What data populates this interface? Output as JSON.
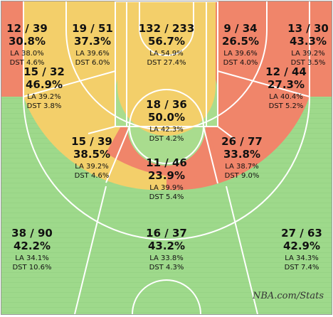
{
  "watermark": "NBA.com/Stats",
  "colors": {
    "wood": "#9dd88a",
    "red": "#f0856a",
    "yellow": "#f3cf6a",
    "green": "#a9dc8e",
    "line": "#ffffff",
    "border": "#999999"
  },
  "chart_data": {
    "type": "shot-chart",
    "title": "",
    "zones": [
      {
        "id": "left-corner-3",
        "fga": "12 / 39",
        "pct": "30.8%",
        "la": "LA 38.0%",
        "dst": "DST 4.6%",
        "fgm": 12,
        "att": 39,
        "fg_pct": 30.8,
        "league_avg": 38.0,
        "distribution": 4.6,
        "color": "red"
      },
      {
        "id": "left-baseline-mid",
        "fga": "15 / 32",
        "pct": "46.9%",
        "la": "LA 39.2%",
        "dst": "DST 3.8%",
        "fgm": 15,
        "att": 32,
        "fg_pct": 46.9,
        "league_avg": 39.2,
        "distribution": 3.8,
        "color": "yellow"
      },
      {
        "id": "left-elbow-mid",
        "fga": "19 / 51",
        "pct": "37.3%",
        "la": "LA 39.6%",
        "dst": "DST 6.0%",
        "fgm": 19,
        "att": 51,
        "fg_pct": 37.3,
        "league_avg": 39.6,
        "distribution": 6.0,
        "color": "yellow"
      },
      {
        "id": "restricted-area",
        "fga": "132 / 233",
        "pct": "56.7%",
        "la": "LA 54.9%",
        "dst": "DST 27.4%",
        "fgm": 132,
        "att": 233,
        "fg_pct": 56.7,
        "league_avg": 54.9,
        "distribution": 27.4,
        "color": "yellow"
      },
      {
        "id": "right-elbow-mid",
        "fga": "9 / 34",
        "pct": "26.5%",
        "la": "LA 39.6%",
        "dst": "DST 4.0%",
        "fgm": 9,
        "att": 34,
        "fg_pct": 26.5,
        "league_avg": 39.6,
        "distribution": 4.0,
        "color": "red"
      },
      {
        "id": "right-corner-3",
        "fga": "13 / 30",
        "pct": "43.3%",
        "la": "LA 39.2%",
        "dst": "DST 3.5%",
        "fgm": 13,
        "att": 30,
        "fg_pct": 43.3,
        "league_avg": 39.2,
        "distribution": 3.5,
        "color": "red"
      },
      {
        "id": "right-baseline-mid",
        "fga": "12 / 44",
        "pct": "27.3%",
        "la": "LA 40.4%",
        "dst": "DST 5.2%",
        "fgm": 12,
        "att": 44,
        "fg_pct": 27.3,
        "league_avg": 40.4,
        "distribution": 5.2,
        "color": "red"
      },
      {
        "id": "paint-non-ra",
        "fga": "18 / 36",
        "pct": "50.0%",
        "la": "LA 42.3%",
        "dst": "DST 4.2%",
        "fgm": 18,
        "att": 36,
        "fg_pct": 50.0,
        "league_avg": 42.3,
        "distribution": 4.2,
        "color": "green"
      },
      {
        "id": "left-wing-mid",
        "fga": "15 / 39",
        "pct": "38.5%",
        "la": "LA 39.2%",
        "dst": "DST 4.6%",
        "fgm": 15,
        "att": 39,
        "fg_pct": 38.5,
        "league_avg": 39.2,
        "distribution": 4.6,
        "color": "yellow"
      },
      {
        "id": "right-wing-mid",
        "fga": "26 / 77",
        "pct": "33.8%",
        "la": "LA 38.7%",
        "dst": "DST 9.0%",
        "fgm": 26,
        "att": 77,
        "fg_pct": 33.8,
        "league_avg": 38.7,
        "distribution": 9.0,
        "color": "red"
      },
      {
        "id": "top-key-mid",
        "fga": "11 / 46",
        "pct": "23.9%",
        "la": "LA 39.9%",
        "dst": "DST 5.4%",
        "fgm": 11,
        "att": 46,
        "fg_pct": 23.9,
        "league_avg": 39.9,
        "distribution": 5.4,
        "color": "red"
      },
      {
        "id": "left-wing-3",
        "fga": "38 / 90",
        "pct": "42.2%",
        "la": "LA 34.1%",
        "dst": "DST 10.6%",
        "fgm": 38,
        "att": 90,
        "fg_pct": 42.2,
        "league_avg": 34.1,
        "distribution": 10.6,
        "color": "green"
      },
      {
        "id": "top-key-3",
        "fga": "16 / 37",
        "pct": "43.2%",
        "la": "LA 33.8%",
        "dst": "DST 4.3%",
        "fgm": 16,
        "att": 37,
        "fg_pct": 43.2,
        "league_avg": 33.8,
        "distribution": 4.3,
        "color": "green"
      },
      {
        "id": "right-wing-3",
        "fga": "27 / 63",
        "pct": "42.9%",
        "la": "LA 34.3%",
        "dst": "DST 7.4%",
        "fgm": 27,
        "att": 63,
        "fg_pct": 42.9,
        "league_avg": 34.3,
        "distribution": 7.4,
        "color": "green"
      }
    ]
  }
}
